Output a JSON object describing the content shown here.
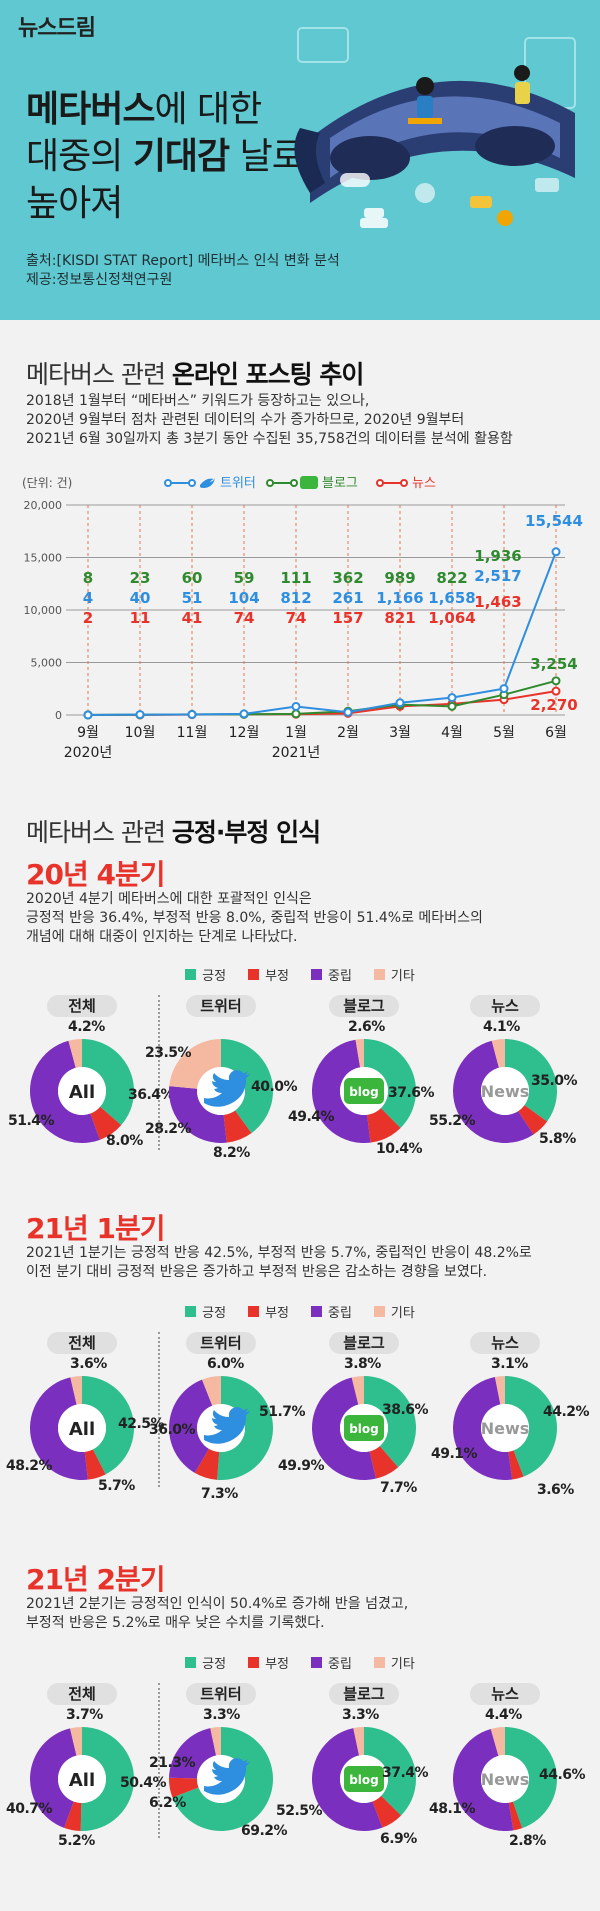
{
  "header": {
    "logo": "뉴스드림",
    "title_line1_bold": "메타버스",
    "title_line1_rest": "에 대한",
    "title_line2_pre": "대중의 ",
    "title_line2_bold": "기대감",
    "title_line2_rest": " 날로",
    "title_line3": "높아져",
    "source": "출처:[KISDI STAT Report] 메타버스 인식 변화 분석",
    "provider": "제공:정보통신정책연구원"
  },
  "section1": {
    "title_pre": "메타버스 관련 ",
    "title_bold": "온라인 포스팅 추이",
    "desc_line1": "2018년 1월부터 “메타버스” 키워드가 등장하고는 있으나,",
    "desc_line2": "2020년 9월부터 점차 관련된 데이터의 수가 증가하므로, 2020년 9월부터",
    "desc_line3": "2021년 6월 30일까지 총 3분기 동안 수집된 35,758건의 데이터를 분석에 활용함"
  },
  "section2": {
    "title_pre": "메타버스 관련 ",
    "title_bold": "긍정·부정 인식",
    "quarters": [
      {
        "title": "20년 4분기",
        "desc_line1": "2020년 4분기 메타버스에 대한 포괄적인 인식은",
        "desc_line2": "긍정적 반응 36.4%, 부정적 반응 8.0%, 중립적 반응이 51.4%로 메타버스의",
        "desc_line3": "개념에 대해 대중이 인지하는 단계로 나타났다."
      },
      {
        "title": "21년 1분기",
        "desc_line1": "2021년 1분기는 긍정적 반응 42.5%, 부정적 반응 5.7%, 중립적인 반응이 48.2%로",
        "desc_line2": "이전 분기 대비 긍정적 반응은 증가하고 부정적 반응은 감소하는 경향을 보였다.",
        "desc_line3": ""
      },
      {
        "title": "21년 2분기",
        "desc_line1": "2021년 2분기는 긍정적인 인식이 50.4%로 증가해 반을 넘겼고,",
        "desc_line2": "부정적 반응은 5.2%로 매우 낮은 수치를 기록했다.",
        "desc_line3": ""
      }
    ],
    "legend": [
      "긍정",
      "부정",
      "중립",
      "기타"
    ],
    "donut_labels": [
      "전체",
      "트위터",
      "블로그",
      "뉴스"
    ],
    "center_labels": [
      "All",
      "",
      "blog",
      "News"
    ]
  },
  "colors": {
    "positive": "#2fbf8f",
    "negative": "#e8332a",
    "neutral": "#7b2fbe",
    "other": "#f5b8a0",
    "twitter": "#2e8ee0",
    "blog": "#2f8a2f",
    "news": "#e8332a"
  },
  "chart_data": [
    {
      "type": "line",
      "ylabel": "(단위: 건)",
      "ylim": [
        0,
        20000
      ],
      "yticks": [
        "0",
        "5,000",
        "10,000",
        "15,000",
        "20,000"
      ],
      "categories": [
        "9월",
        "10월",
        "11월",
        "12월",
        "1월",
        "2월",
        "3월",
        "4월",
        "5월",
        "6월"
      ],
      "year_labels": [
        "2020년",
        "2021년"
      ],
      "series": [
        {
          "name": "트위터",
          "values": [
            4,
            40,
            51,
            104,
            812,
            261,
            1166,
            1658,
            2517,
            15544
          ],
          "labels": [
            "4",
            "40",
            "51",
            "104",
            "812",
            "261",
            "1,166",
            "1,658",
            "2,517",
            "15,544"
          ]
        },
        {
          "name": "블로그",
          "values": [
            8,
            23,
            60,
            59,
            111,
            362,
            989,
            822,
            1936,
            3254
          ],
          "labels": [
            "8",
            "23",
            "60",
            "59",
            "111",
            "362",
            "989",
            "822",
            "1,936",
            "3,254"
          ]
        },
        {
          "name": "뉴스",
          "values": [
            2,
            11,
            41,
            74,
            74,
            157,
            821,
            1064,
            1463,
            2270
          ],
          "labels": [
            "2",
            "11",
            "41",
            "74",
            "74",
            "157",
            "821",
            "1,064",
            "1,463",
            "2,270"
          ]
        }
      ],
      "legend_position": "top"
    },
    {
      "type": "pie",
      "title": "20년 4분기 전체",
      "categories": [
        "긍정",
        "부정",
        "중립",
        "기타"
      ],
      "values": [
        36.4,
        8.0,
        51.4,
        4.2
      ]
    },
    {
      "type": "pie",
      "title": "20년 4분기 트위터",
      "categories": [
        "긍정",
        "부정",
        "중립",
        "기타"
      ],
      "values": [
        40.0,
        8.2,
        28.2,
        23.5
      ]
    },
    {
      "type": "pie",
      "title": "20년 4분기 블로그",
      "categories": [
        "긍정",
        "부정",
        "중립",
        "기타"
      ],
      "values": [
        37.6,
        10.4,
        49.4,
        2.6
      ]
    },
    {
      "type": "pie",
      "title": "20년 4분기 뉴스",
      "categories": [
        "긍정",
        "부정",
        "중립",
        "기타"
      ],
      "values": [
        35.0,
        5.8,
        55.2,
        4.1
      ]
    },
    {
      "type": "pie",
      "title": "21년 1분기 전체",
      "categories": [
        "긍정",
        "부정",
        "중립",
        "기타"
      ],
      "values": [
        42.5,
        5.7,
        48.2,
        3.6
      ]
    },
    {
      "type": "pie",
      "title": "21년 1분기 트위터",
      "categories": [
        "긍정",
        "부정",
        "중립",
        "기타"
      ],
      "values": [
        51.7,
        7.3,
        36.0,
        6.0
      ]
    },
    {
      "type": "pie",
      "title": "21년 1분기 블로그",
      "categories": [
        "긍정",
        "부정",
        "중립",
        "기타"
      ],
      "values": [
        38.6,
        7.7,
        49.9,
        3.8
      ]
    },
    {
      "type": "pie",
      "title": "21년 1분기 뉴스",
      "categories": [
        "긍정",
        "부정",
        "중립",
        "기타"
      ],
      "values": [
        44.2,
        3.6,
        49.1,
        3.1
      ]
    },
    {
      "type": "pie",
      "title": "21년 2분기 전체",
      "categories": [
        "긍정",
        "부정",
        "중립",
        "기타"
      ],
      "values": [
        50.4,
        5.2,
        40.7,
        3.7
      ]
    },
    {
      "type": "pie",
      "title": "21년 2분기 트위터",
      "categories": [
        "긍정",
        "부정",
        "중립",
        "기타"
      ],
      "values": [
        69.2,
        6.2,
        21.3,
        3.3
      ]
    },
    {
      "type": "pie",
      "title": "21년 2분기 블로그",
      "categories": [
        "긍정",
        "부정",
        "중립",
        "기타"
      ],
      "values": [
        37.4,
        6.9,
        52.5,
        3.3
      ]
    },
    {
      "type": "pie",
      "title": "21년 2분기 뉴스",
      "categories": [
        "긍정",
        "부정",
        "중립",
        "기타"
      ],
      "values": [
        44.6,
        2.8,
        48.1,
        4.4
      ]
    }
  ]
}
